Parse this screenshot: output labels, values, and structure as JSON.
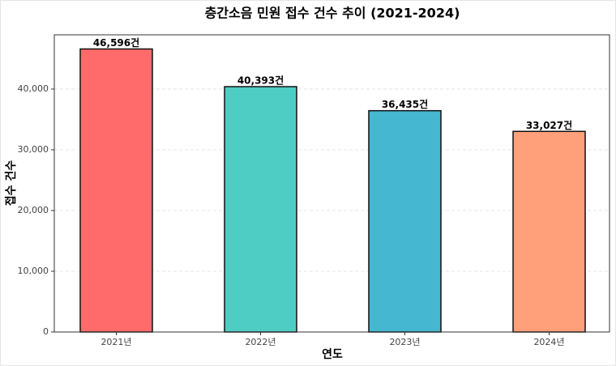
{
  "chart_data": {
    "type": "bar",
    "title": "층간소음 민원 접수 건수 추이 (2021-2024)",
    "x_label": "연도",
    "y_label": "접수 건수",
    "categories": [
      "2021년",
      "2022년",
      "2023년",
      "2024년"
    ],
    "values": [
      46596,
      40393,
      36435,
      33027
    ],
    "value_labels": [
      "46,596건",
      "40,393건",
      "36,435건",
      "33,027건"
    ],
    "colors": [
      "#ff6b6b",
      "#4ecdc4",
      "#45b7d1",
      "#ffa07a"
    ],
    "ylim": [
      0,
      48926
    ],
    "yticks": [
      0,
      {
        "value": 10000,
        "label": "10,000"
      },
      {
        "value": 20000,
        "label": "20,000"
      },
      {
        "value": 30000,
        "label": "30,000"
      },
      {
        "value": 40000,
        "label": "40,000"
      }
    ],
    "grid": true
  }
}
